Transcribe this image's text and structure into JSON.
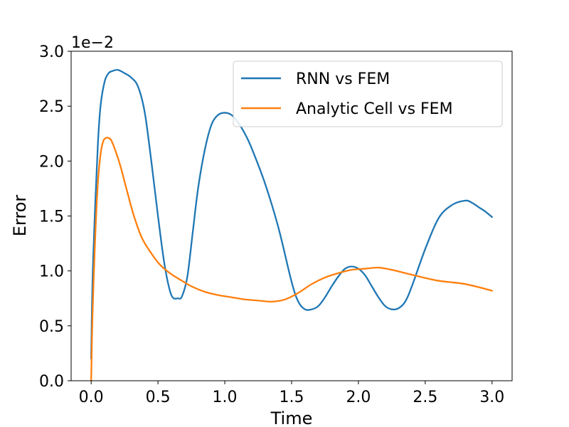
{
  "chart_data": {
    "type": "line",
    "xlabel": "Time",
    "ylabel": "Error",
    "offset_label": "1e−2",
    "xlim": [
      -0.15,
      3.15
    ],
    "ylim": [
      0,
      3.0
    ],
    "xticks": [
      0.0,
      0.5,
      1.0,
      1.5,
      2.0,
      2.5,
      3.0
    ],
    "xtick_labels": [
      "0.0",
      "0.5",
      "1.0",
      "1.5",
      "2.0",
      "2.5",
      "3.0"
    ],
    "yticks": [
      0.0,
      0.5,
      1.0,
      1.5,
      2.0,
      2.5,
      3.0
    ],
    "ytick_labels": [
      "0.0",
      "0.5",
      "1.0",
      "1.5",
      "2.0",
      "2.5",
      "3.0"
    ],
    "grid": false,
    "legend_position": "top-right",
    "colors": {
      "RNN vs FEM": "#1f77b4",
      "Analytic Cell vs FEM": "#ff7f0e"
    },
    "series": [
      {
        "name": "RNN vs FEM",
        "x": [
          0.0,
          0.01,
          0.03,
          0.05,
          0.07,
          0.1,
          0.13,
          0.16,
          0.2,
          0.25,
          0.3,
          0.35,
          0.4,
          0.45,
          0.5,
          0.55,
          0.6,
          0.65,
          0.68,
          0.72,
          0.76,
          0.8,
          0.85,
          0.9,
          0.95,
          1.0,
          1.05,
          1.1,
          1.15,
          1.2,
          1.3,
          1.4,
          1.5,
          1.55,
          1.6,
          1.65,
          1.7,
          1.75,
          1.8,
          1.85,
          1.9,
          1.95,
          2.0,
          2.05,
          2.1,
          2.15,
          2.2,
          2.25,
          2.3,
          2.35,
          2.4,
          2.5,
          2.6,
          2.7,
          2.8,
          2.85,
          2.9,
          2.95,
          3.0
        ],
        "y": [
          0.2,
          0.9,
          1.6,
          2.15,
          2.5,
          2.72,
          2.8,
          2.82,
          2.83,
          2.8,
          2.76,
          2.68,
          2.45,
          2.0,
          1.5,
          1.05,
          0.78,
          0.75,
          0.77,
          0.95,
          1.35,
          1.75,
          2.1,
          2.33,
          2.42,
          2.44,
          2.42,
          2.35,
          2.25,
          2.12,
          1.8,
          1.4,
          0.9,
          0.72,
          0.65,
          0.65,
          0.68,
          0.76,
          0.86,
          0.95,
          1.02,
          1.04,
          1.02,
          0.96,
          0.86,
          0.76,
          0.68,
          0.65,
          0.66,
          0.72,
          0.86,
          1.2,
          1.48,
          1.6,
          1.64,
          1.62,
          1.58,
          1.54,
          1.49
        ]
      },
      {
        "name": "Analytic Cell vs FEM",
        "x": [
          0.0,
          0.01,
          0.03,
          0.05,
          0.07,
          0.09,
          0.11,
          0.13,
          0.15,
          0.18,
          0.22,
          0.27,
          0.32,
          0.38,
          0.45,
          0.52,
          0.6,
          0.68,
          0.75,
          0.85,
          0.95,
          1.05,
          1.15,
          1.25,
          1.35,
          1.45,
          1.55,
          1.65,
          1.75,
          1.85,
          1.95,
          2.05,
          2.15,
          2.25,
          2.35,
          2.45,
          2.6,
          2.8,
          3.0
        ],
        "y": [
          0.0,
          0.6,
          1.3,
          1.8,
          2.06,
          2.18,
          2.21,
          2.21,
          2.19,
          2.1,
          1.95,
          1.72,
          1.5,
          1.3,
          1.16,
          1.05,
          0.97,
          0.91,
          0.86,
          0.81,
          0.78,
          0.76,
          0.74,
          0.73,
          0.72,
          0.74,
          0.8,
          0.88,
          0.94,
          0.98,
          1.01,
          1.02,
          1.03,
          1.01,
          0.98,
          0.95,
          0.91,
          0.88,
          0.82
        ]
      }
    ]
  }
}
